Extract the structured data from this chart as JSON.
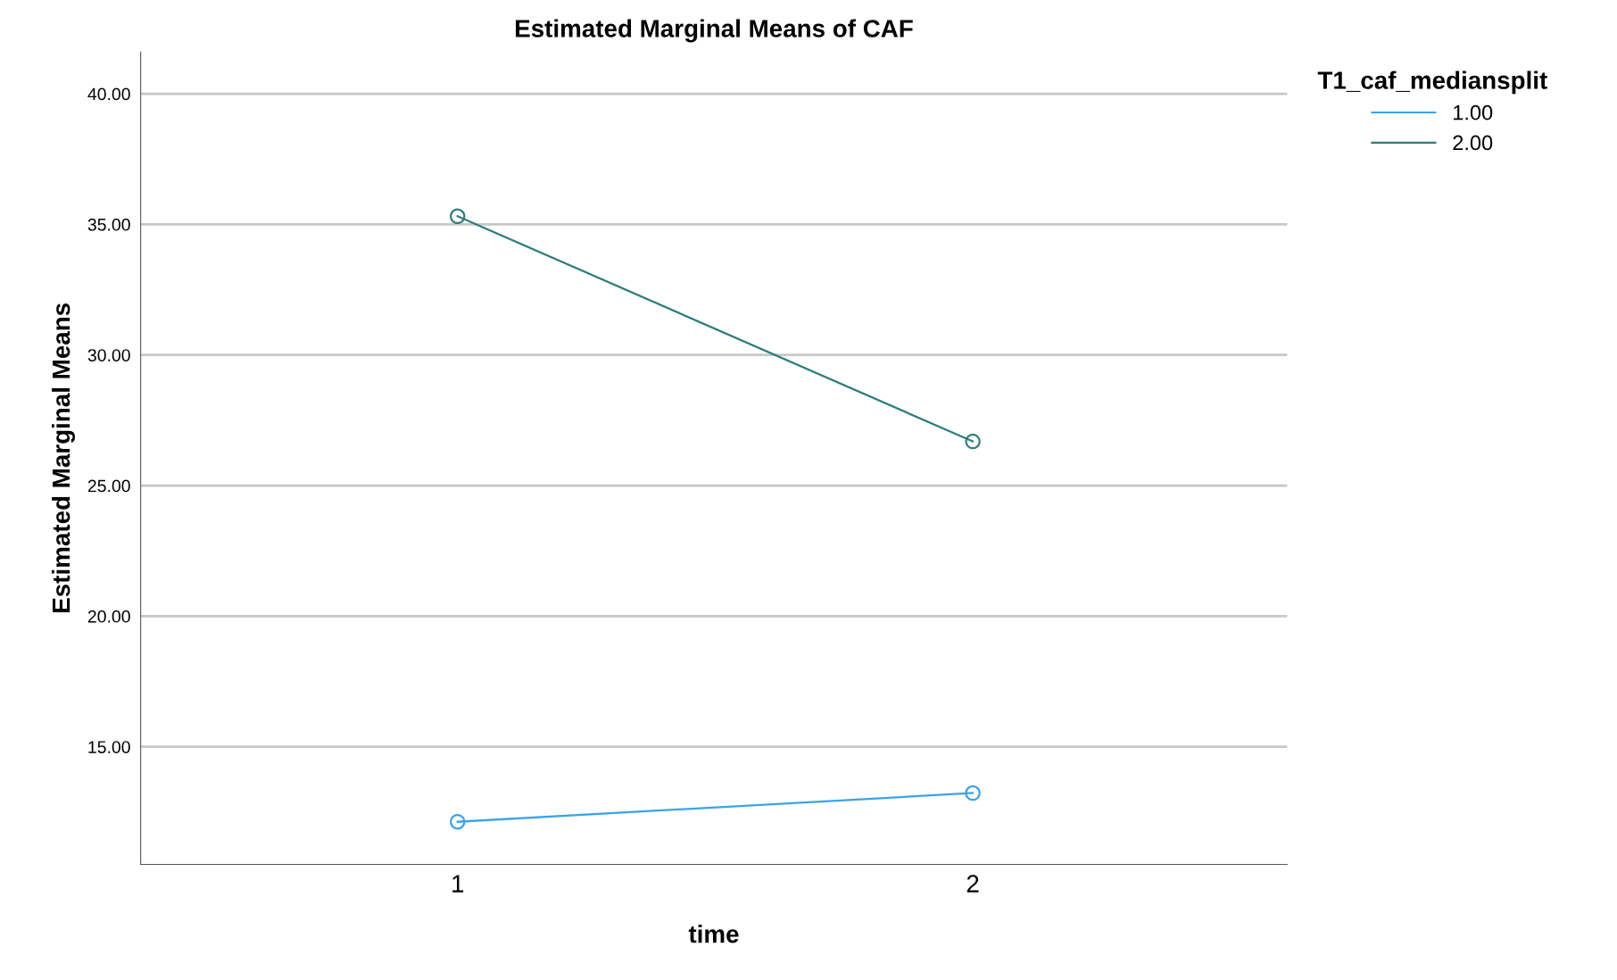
{
  "chart_data": {
    "type": "line",
    "title": "Estimated Marginal Means of CAF",
    "xlabel": "time",
    "ylabel": "Estimated Marginal Means",
    "legend_title": "T1_caf_mediansplit",
    "categories": [
      "1",
      "2"
    ],
    "series": [
      {
        "name": "1.00",
        "color": "#3ba3e8",
        "values": [
          12.13,
          13.23
        ]
      },
      {
        "name": "2.00",
        "color": "#2e7d7a",
        "values": [
          35.31,
          26.69
        ]
      }
    ],
    "ylim": [
      10.5,
      41.6
    ],
    "yticks": [
      {
        "value": 15,
        "label": "15.00"
      },
      {
        "value": 20,
        "label": "20.00"
      },
      {
        "value": 25,
        "label": "25.00"
      },
      {
        "value": 30,
        "label": "30.00"
      },
      {
        "value": 35,
        "label": "35.00"
      },
      {
        "value": 40,
        "label": "40.00"
      }
    ],
    "grid": "y",
    "legend": "top right",
    "marker": "circle",
    "line_style": "solid"
  }
}
